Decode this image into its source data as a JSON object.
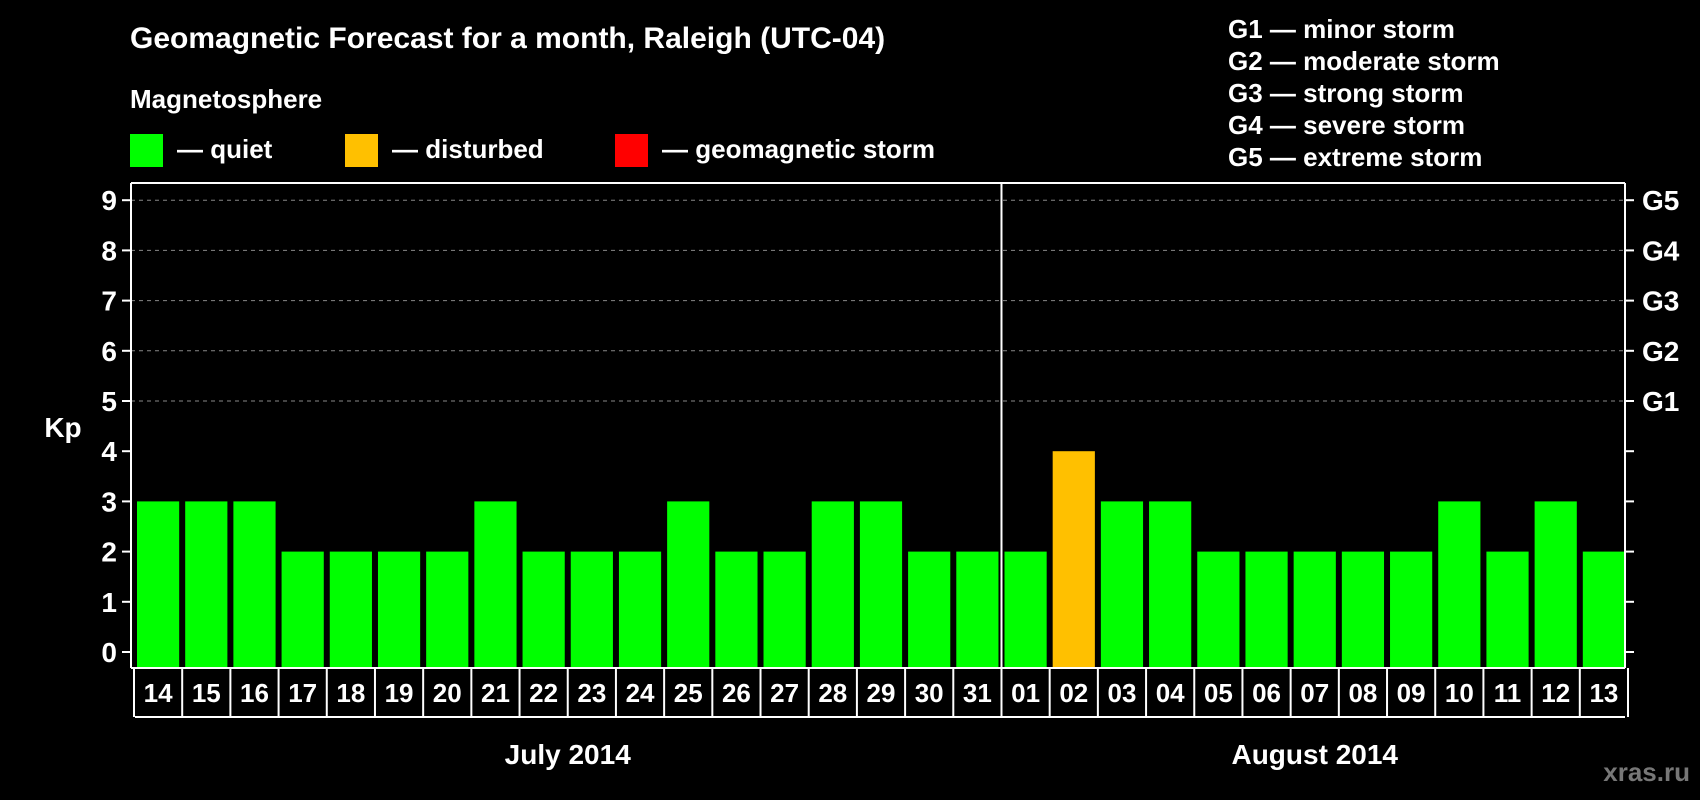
{
  "chart_data": {
    "type": "bar",
    "title": "Geomagnetic Forecast for a month, Raleigh (UTC-04)",
    "subtitle": "Magnetosphere",
    "ylabel": "Kp",
    "ylim": [
      0,
      9
    ],
    "yticks": [
      "0",
      "1",
      "2",
      "3",
      "4",
      "5",
      "6",
      "7",
      "8",
      "9"
    ],
    "storm_axis": [
      {
        "kp": 5,
        "label": "G1"
      },
      {
        "kp": 6,
        "label": "G2"
      },
      {
        "kp": 7,
        "label": "G3"
      },
      {
        "kp": 8,
        "label": "G4"
      },
      {
        "kp": 9,
        "label": "G5"
      }
    ],
    "legend": [
      {
        "label": "— quiet",
        "color": "#00ff00"
      },
      {
        "label": "— disturbed",
        "color": "#ffc000"
      },
      {
        "label": "— geomagnetic storm",
        "color": "#ff0000"
      }
    ],
    "storm_scale": [
      "G1 — minor storm",
      "G2 — moderate storm",
      "G3 — strong storm",
      "G4 — severe storm",
      "G5 — extreme storm"
    ],
    "categories": [
      "14",
      "15",
      "16",
      "17",
      "18",
      "19",
      "20",
      "21",
      "22",
      "23",
      "24",
      "25",
      "26",
      "27",
      "28",
      "29",
      "30",
      "31",
      "01",
      "02",
      "03",
      "04",
      "05",
      "06",
      "07",
      "08",
      "09",
      "10",
      "11",
      "12",
      "13"
    ],
    "values": [
      3,
      3,
      3,
      2,
      2,
      2,
      2,
      3,
      2,
      2,
      2,
      3,
      2,
      2,
      3,
      3,
      2,
      2,
      2,
      4,
      3,
      3,
      2,
      2,
      2,
      2,
      2,
      3,
      2,
      3,
      2
    ],
    "bar_colors": [
      "#00ff00",
      "#00ff00",
      "#00ff00",
      "#00ff00",
      "#00ff00",
      "#00ff00",
      "#00ff00",
      "#00ff00",
      "#00ff00",
      "#00ff00",
      "#00ff00",
      "#00ff00",
      "#00ff00",
      "#00ff00",
      "#00ff00",
      "#00ff00",
      "#00ff00",
      "#00ff00",
      "#00ff00",
      "#ffc000",
      "#00ff00",
      "#00ff00",
      "#00ff00",
      "#00ff00",
      "#00ff00",
      "#00ff00",
      "#00ff00",
      "#00ff00",
      "#00ff00",
      "#00ff00",
      "#00ff00"
    ],
    "months": [
      {
        "label": "July 2014",
        "start": 0,
        "count": 18
      },
      {
        "label": "August 2014",
        "start": 18,
        "count": 13
      }
    ],
    "grid": true
  },
  "watermark": "xras.ru",
  "colors": {
    "background": "#000000",
    "axis": "#ffffff",
    "grid": "#888888"
  }
}
